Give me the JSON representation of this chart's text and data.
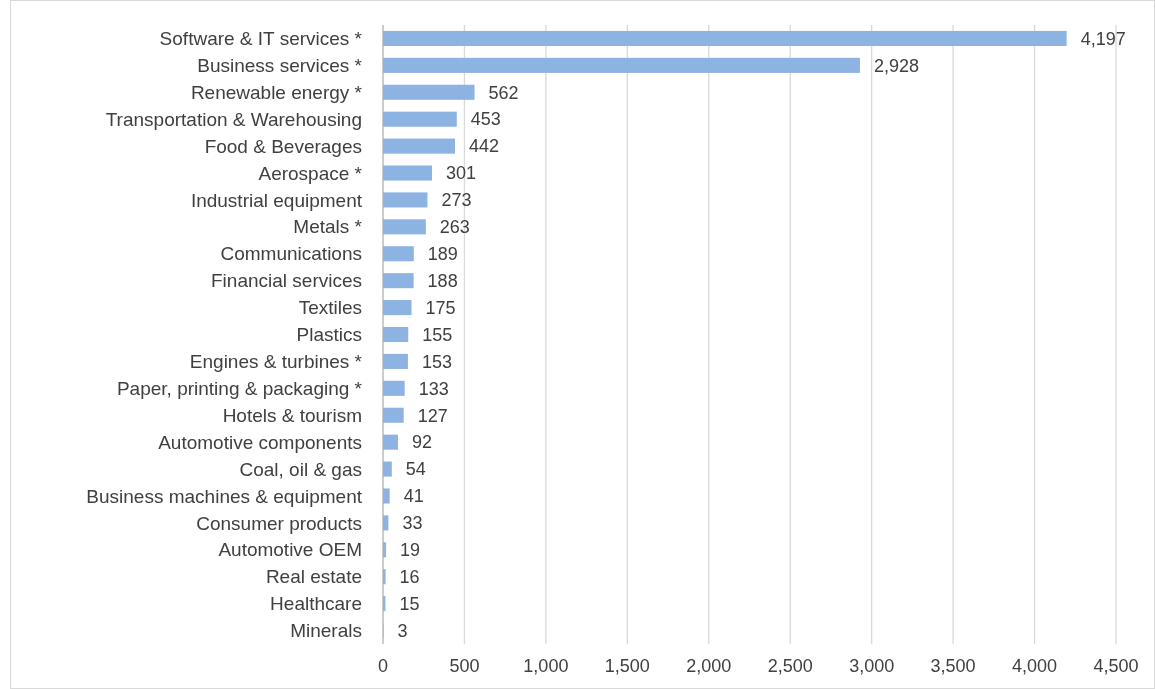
{
  "chart_data": {
    "type": "bar",
    "orientation": "horizontal",
    "categories": [
      "Software & IT services *",
      "Business services *",
      "Renewable energy *",
      "Transportation & Warehousing",
      "Food & Beverages",
      "Aerospace *",
      "Industrial equipment",
      "Metals *",
      "Communications",
      "Financial services",
      "Textiles",
      "Plastics",
      "Engines & turbines *",
      "Paper, printing & packaging *",
      "Hotels & tourism",
      "Automotive components",
      "Coal, oil & gas",
      "Business machines & equipment",
      "Consumer products",
      "Automotive OEM",
      "Real estate",
      "Healthcare",
      "Minerals"
    ],
    "values": [
      4197,
      2928,
      562,
      453,
      442,
      301,
      273,
      263,
      189,
      188,
      175,
      155,
      153,
      133,
      127,
      92,
      54,
      41,
      33,
      19,
      16,
      15,
      3
    ],
    "color": "#8db3e2",
    "xlim": [
      0,
      4500
    ],
    "xticks": [
      0,
      500,
      {
        "value": 1000,
        "label": "1,000"
      },
      {
        "value": 1500,
        "label": "1,500"
      },
      {
        "value": 2000,
        "label": "2,000"
      },
      {
        "value": 2500,
        "label": "2,500"
      },
      {
        "value": 3000,
        "label": "3,000"
      },
      {
        "value": 3500,
        "label": "3,500"
      },
      {
        "value": 4000,
        "label": "4,000"
      },
      {
        "value": 4500,
        "label": "4,500"
      }
    ],
    "grid": "x",
    "value_labels": [
      "4,197",
      "2,928",
      "562",
      "453",
      "442",
      "301",
      "273",
      "263",
      "189",
      "188",
      "175",
      "155",
      "153",
      "133",
      "127",
      "92",
      "54",
      "41",
      "33",
      "19",
      "16",
      "15",
      "3"
    ]
  }
}
